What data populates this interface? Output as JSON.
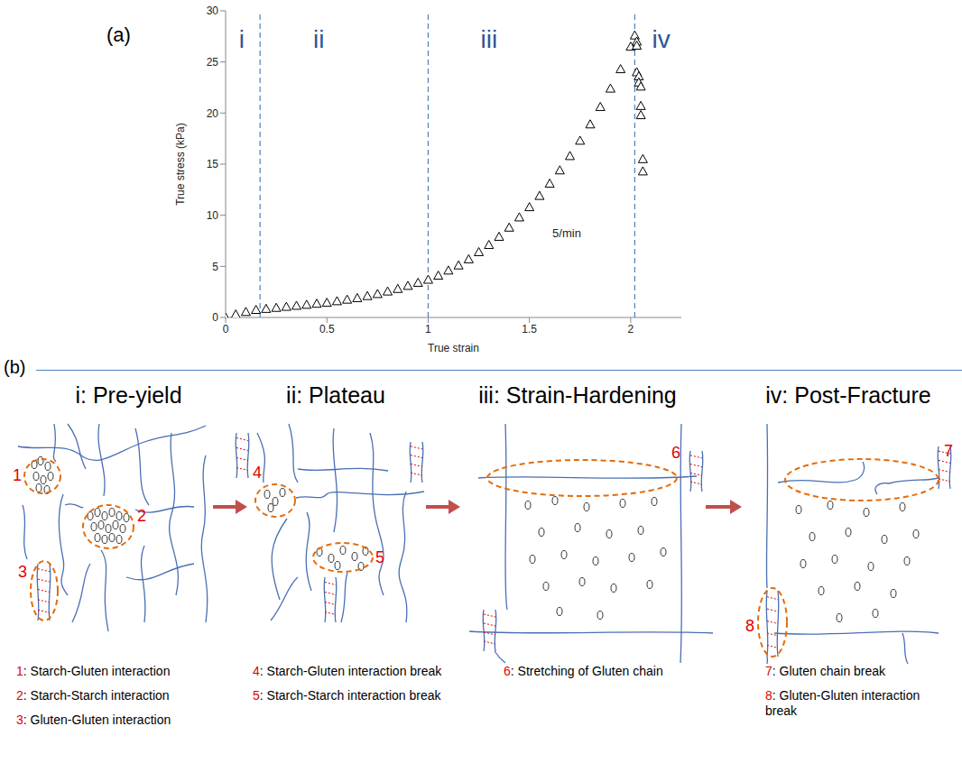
{
  "chart_data": {
    "type": "scatter",
    "panel_label": "(a)",
    "x_label": "True strain",
    "y_label": "True stress (kPa)",
    "xlim": [
      0,
      2.25
    ],
    "xticks": [
      0,
      0.5,
      1,
      1.5,
      2
    ],
    "ylim": [
      0,
      30
    ],
    "yticks": [
      0,
      5,
      10,
      15,
      20,
      25,
      30
    ],
    "grid": false,
    "color": "#000000",
    "marker": "triangle",
    "x": [
      0,
      0.05,
      0.1,
      0.15,
      0.2,
      0.25,
      0.3,
      0.35,
      0.4,
      0.45,
      0.5,
      0.55,
      0.6,
      0.65,
      0.7,
      0.75,
      0.8,
      0.85,
      0.9,
      0.95,
      1.0,
      1.05,
      1.1,
      1.15,
      1.2,
      1.25,
      1.3,
      1.35,
      1.4,
      1.45,
      1.5,
      1.55,
      1.6,
      1.65,
      1.7,
      1.75,
      1.8,
      1.85,
      1.9,
      1.95,
      2.0,
      2.02,
      2.03,
      2.03,
      2.03,
      2.04,
      2.04,
      2.05,
      2.05,
      2.05,
      2.06,
      2.06
    ],
    "values": [
      0,
      0.3,
      0.55,
      0.75,
      0.85,
      0.95,
      1.05,
      1.15,
      1.25,
      1.35,
      1.45,
      1.6,
      1.75,
      1.9,
      2.1,
      2.3,
      2.55,
      2.8,
      3.1,
      3.4,
      3.7,
      4.1,
      4.6,
      5.1,
      5.7,
      6.4,
      7.1,
      7.9,
      8.8,
      9.8,
      10.8,
      11.9,
      13.1,
      14.4,
      15.8,
      17.3,
      18.9,
      20.6,
      22.4,
      24.3,
      26.5,
      27.6,
      27.0,
      26.6,
      24.0,
      23.6,
      23.0,
      22.6,
      20.7,
      19.8,
      15.5,
      14.3
    ],
    "annotations": [
      {
        "text": "5/min",
        "x": 1.6,
        "y": 8.3
      }
    ],
    "region_boundaries": [
      0.17,
      1.0,
      2.02
    ],
    "regions": [
      {
        "text": "i",
        "x": 0.08,
        "y": 27.3
      },
      {
        "text": "ii",
        "x": 0.46,
        "y": 27.3
      },
      {
        "text": "iii",
        "x": 1.3,
        "y": 27.3
      },
      {
        "text": "iv",
        "x": 2.15,
        "y": 27.3
      }
    ]
  },
  "panel_label": "(b)",
  "panels": [
    {
      "title": "i: Pre-yield",
      "notes": [
        {
          "key": "1",
          "text": ": Starch-Gluten interaction"
        },
        {
          "key": "2",
          "text": ": Starch-Starch interaction"
        },
        {
          "key": "3",
          "text": ": Gluten-Gluten interaction"
        }
      ]
    },
    {
      "title": "ii: Plateau",
      "notes": [
        {
          "key": "4",
          "text": ": Starch-Gluten interaction break"
        },
        {
          "key": "5",
          "text": ": Starch-Starch interaction break"
        }
      ]
    },
    {
      "title": "iii: Strain-Hardening",
      "notes": [
        {
          "key": "6",
          "text": ": Stretching of Gluten chain"
        }
      ]
    },
    {
      "title": "iv: Post-Fracture",
      "notes": [
        {
          "key": "7",
          "text": ": Gluten chain break"
        },
        {
          "key": "8",
          "text": ": Gluten-Gluten interaction break"
        }
      ]
    }
  ]
}
